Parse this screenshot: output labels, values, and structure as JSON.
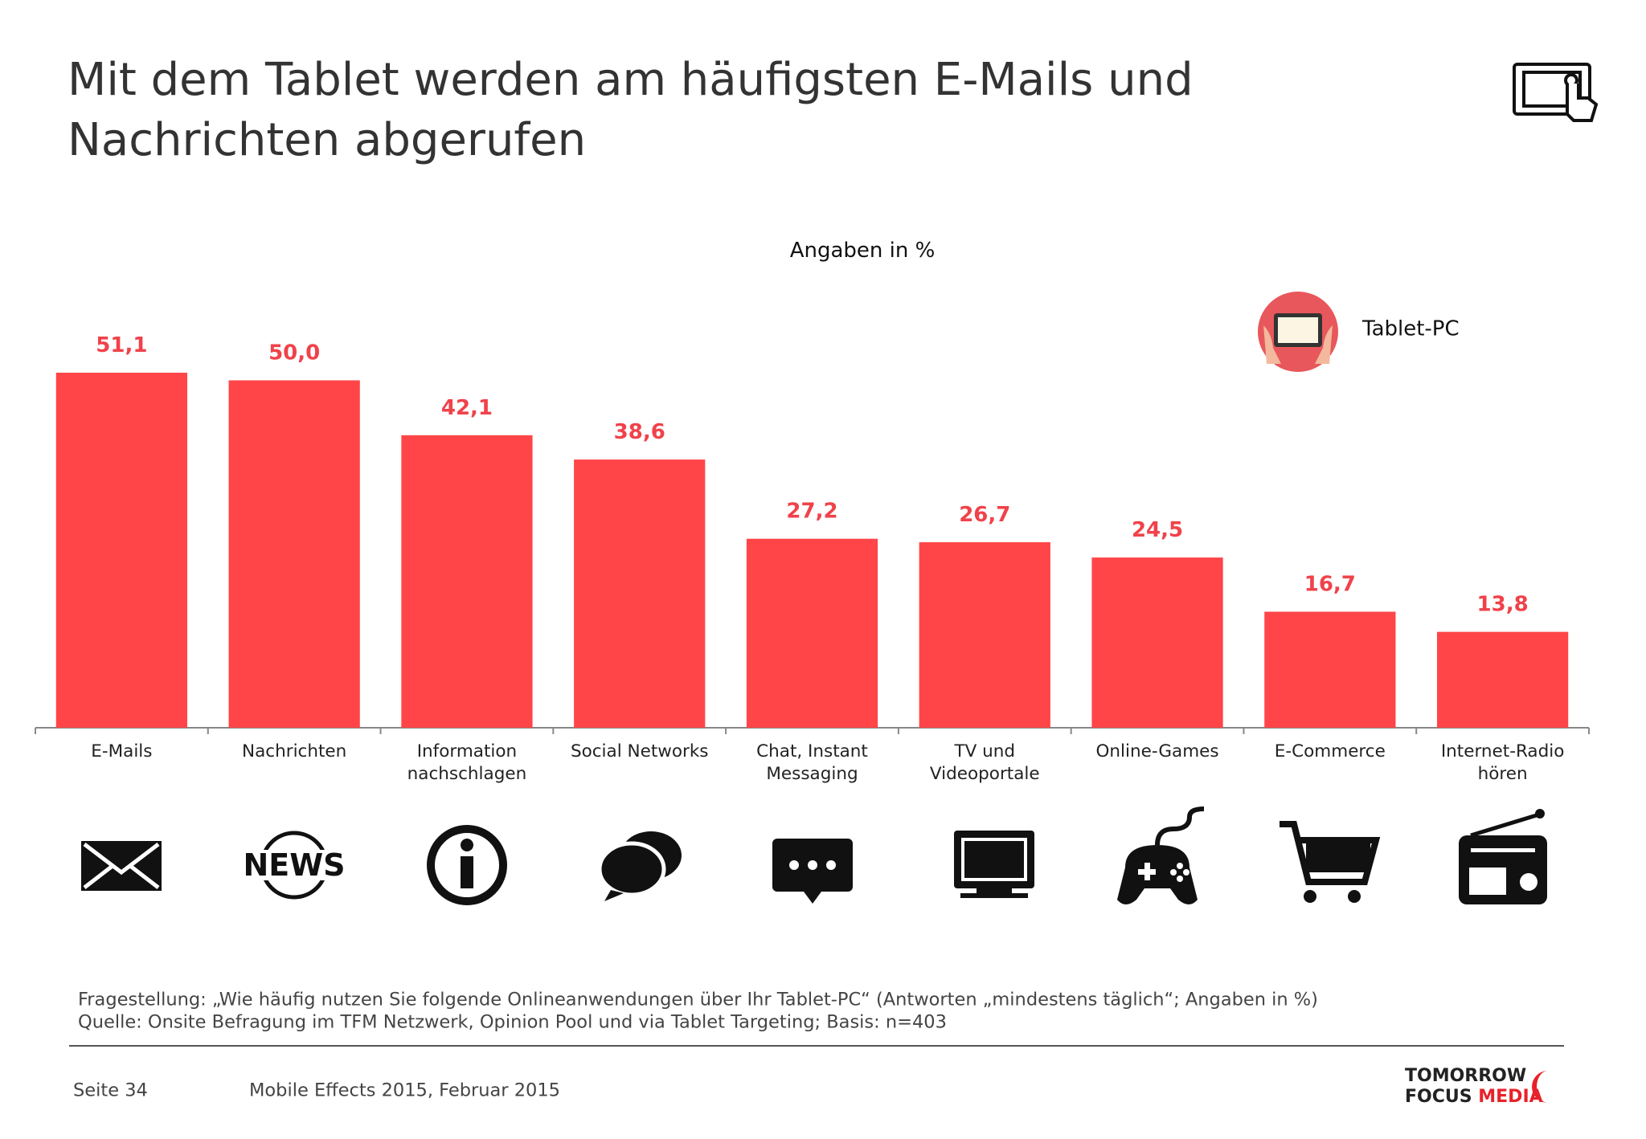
{
  "chart_data": {
    "type": "bar",
    "title": "Mit dem Tablet werden am häufigsten E-Mails und",
    "title_line2": "Nachrichten abgerufen",
    "subtitle": "Angaben in %",
    "categories": [
      "E-Mails",
      "Nachrichten",
      "Information nachschlagen",
      "Social Networks",
      "Chat, Instant Messaging",
      "TV und Videoportale",
      "Online-Games",
      "E-Commerce",
      "Internet-Radio hören"
    ],
    "series": [
      {
        "name": "Tablet-PC",
        "color": "#ff4548",
        "values": [
          51.1,
          50.0,
          42.1,
          38.6,
          27.2,
          26.7,
          24.5,
          16.7,
          13.8
        ],
        "value_labels": [
          "51,1",
          "50,0",
          "42,1",
          "38,6",
          "27,2",
          "26,7",
          "24,5",
          "16,7",
          "13,8"
        ]
      }
    ],
    "label_color": "#f0424a",
    "ylim": [
      0,
      60
    ]
  },
  "footnotes": [
    "Fragestellung: „Wie häufig nutzen Sie folgende Onlineanwendungen über Ihr Tablet-PC“ (Antworten „mindestens täglich“; Angaben in %)",
    "Quelle: Onsite Befragung im TFM Netzwerk, Opinion Pool und via Tablet Targeting; Basis: n=403"
  ],
  "footer": {
    "page": "Seite 34",
    "source": "Mobile Effects 2015, Februar 2015",
    "logo": {
      "line1": "TOMORROW",
      "line2a": "FOCUS",
      "line2b": "MEDIA"
    }
  }
}
